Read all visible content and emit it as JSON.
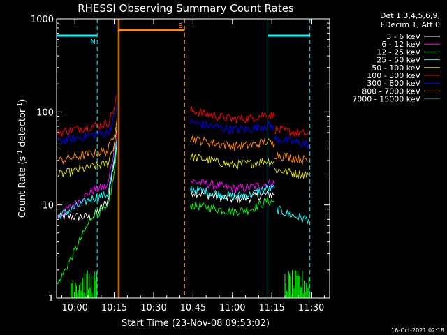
{
  "chart_data": {
    "type": "line",
    "title": "RHESSI Observing Summary Count Rates",
    "xlabel": "Start Time (23-Nov-08 09:53:02)",
    "ylabel_main": "Count Rate (s",
    "ylabel_sup1": "-1",
    "ylabel_mid": " detector",
    "ylabel_sup2": "-1",
    "ylabel_end": ")",
    "yscale": "log",
    "ylim": [
      1,
      1000
    ],
    "xlim_minutes": [
      -6.97,
      97.03
    ],
    "x_ticks": [
      {
        "label": "10:00",
        "m": 0
      },
      {
        "label": "10:15",
        "m": 15
      },
      {
        "label": "10:30",
        "m": 30
      },
      {
        "label": "10:45",
        "m": 45
      },
      {
        "label": "11:00",
        "m": 60
      },
      {
        "label": "11:15",
        "m": 75
      },
      {
        "label": "11:30",
        "m": 90
      }
    ],
    "y_ticks": [
      {
        "label": "1",
        "v": 1
      },
      {
        "label": "10",
        "v": 10
      },
      {
        "label": "100",
        "v": 100
      },
      {
        "label": "1000",
        "v": 1000
      }
    ],
    "legend_header": [
      "Det 1,3,4,5,6,9,",
      "FDecim 1, Att 0"
    ],
    "legend_position": "top-right outside",
    "series": [
      {
        "name": "3 - 6 keV",
        "color": "#ffffff",
        "segments": [
          {
            "x": [
              -6.5,
              7,
              12.5,
              15,
              16
            ],
            "y": [
              7.5,
              7.5,
              11,
              30,
              45
            ]
          },
          {
            "x": [
              44,
              50,
              60,
              67,
              73,
              76
            ],
            "y": [
              14,
              13,
              11.5,
              12,
              13,
              13
            ]
          }
        ]
      },
      {
        "name": "6 - 12 keV",
        "color": "#ff00ff",
        "segments": [
          {
            "x": [
              -6.5,
              7,
              12.5,
              15,
              16
            ],
            "y": [
              7.5,
              14.5,
              16,
              40,
              60
            ]
          },
          {
            "x": [
              44,
              50,
              60,
              67,
              73,
              76
            ],
            "y": [
              18,
              17,
              15,
              15.5,
              17,
              17
            ]
          }
        ]
      },
      {
        "name": "12 - 25 keV",
        "color": "#00ff00",
        "segments": [
          {
            "x": [
              -6.5,
              7,
              12.5,
              15,
              16
            ],
            "y": [
              1.4,
              8,
              9,
              22,
              40
            ]
          },
          {
            "x": [
              44,
              50,
              60,
              67,
              73,
              76
            ],
            "y": [
              10,
              9.5,
              8.5,
              9,
              11,
              11
            ]
          }
        ]
      },
      {
        "name": "25 - 50 keV",
        "color": "#00ffff",
        "segments": [
          {
            "x": [
              -6.5,
              7,
              12.5,
              15,
              16
            ],
            "y": [
              7.5,
              12,
              13,
              30,
              50
            ]
          },
          {
            "x": [
              44,
              50,
              60,
              67,
              73,
              76
            ],
            "y": [
              15,
              14,
              12.5,
              13,
              15,
              15
            ]
          },
          {
            "x": [
              77,
              84,
              89
            ],
            "y": [
              9,
              7.5,
              7
            ]
          }
        ]
      },
      {
        "name": "50 - 100 keV",
        "color": "#dddd00",
        "segments": [
          {
            "x": [
              -6.5,
              7,
              12.5,
              15,
              16
            ],
            "y": [
              21,
              26,
              28,
              45,
              70
            ]
          },
          {
            "x": [
              44,
              50,
              60,
              67,
              73,
              76
            ],
            "y": [
              33,
              31,
              27,
              28,
              30,
              29
            ]
          },
          {
            "x": [
              76,
              84,
              89
            ],
            "y": [
              24,
              22,
              21
            ]
          }
        ]
      },
      {
        "name": "100 - 300 keV",
        "color": "#ff0000",
        "segments": [
          {
            "x": [
              -6.5,
              7,
              12.5,
              15,
              16
            ],
            "y": [
              60,
              71,
              75,
              110,
              150
            ]
          },
          {
            "x": [
              44,
              50,
              60,
              67,
              73,
              76
            ],
            "y": [
              105,
              95,
              84,
              86,
              95,
              90
            ]
          },
          {
            "x": [
              76,
              84,
              89
            ],
            "y": [
              65,
              60,
              58
            ]
          }
        ]
      },
      {
        "name": "300 - 800 keV",
        "color": "#0000ff",
        "segments": [
          {
            "x": [
              -6.5,
              7,
              12.5,
              15,
              16
            ],
            "y": [
              48,
              57,
              60,
              85,
              120
            ]
          },
          {
            "x": [
              44,
              50,
              60,
              67,
              73,
              76
            ],
            "y": [
              78,
              72,
              65,
              66,
              72,
              70
            ]
          },
          {
            "x": [
              76,
              84,
              89
            ],
            "y": [
              52,
              47,
              45
            ]
          }
        ]
      },
      {
        "name": "800 - 7000 keV",
        "color": "#ff8800",
        "segments": [
          {
            "x": [
              -6.5,
              7,
              12.5,
              15,
              16
            ],
            "y": [
              30,
              36,
              38,
              60,
              85
            ]
          },
          {
            "x": [
              44,
              50,
              60,
              67,
              73,
              76
            ],
            "y": [
              52,
              48,
              43,
              44,
              48,
              45
            ]
          },
          {
            "x": [
              76,
              84,
              89
            ],
            "y": [
              35,
              32,
              30
            ]
          }
        ]
      },
      {
        "name": "7000 - 15000 keV",
        "color": "#556b00",
        "segments": []
      }
    ],
    "flags": [
      {
        "letter": "N",
        "color": "#00ffff",
        "x_range": [
          -6.97,
          8.5
        ],
        "y": 660
      },
      {
        "letter": "S",
        "color": "#ff8800",
        "x_range": [
          16.5,
          41.8
        ],
        "y": 760
      },
      {
        "letter": "",
        "color": "#00ffff",
        "x_range": [
          73.5,
          89.5
        ],
        "y": 660
      }
    ]
  },
  "footer": {
    "timestamp": "16-Oct-2021 02:18"
  }
}
